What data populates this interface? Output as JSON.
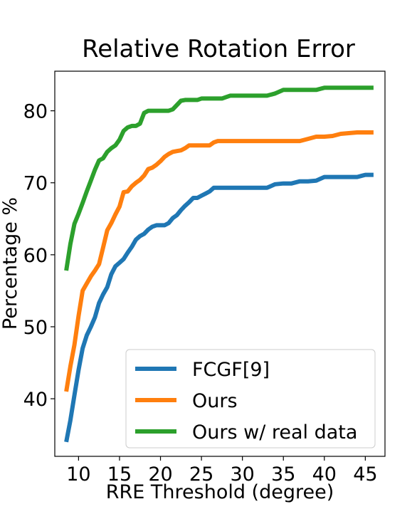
{
  "chart_data": {
    "type": "line",
    "title": "Relative Rotation Error",
    "xlabel": "RRE Threshold (degree)",
    "ylabel": "Percentage %",
    "xlim": [
      7.1,
      47.4
    ],
    "ylim": [
      32,
      85.5
    ],
    "xticks": [
      10,
      15,
      20,
      25,
      30,
      35,
      40,
      45
    ],
    "yticks": [
      40,
      50,
      60,
      70,
      80
    ],
    "grid": false,
    "legend_position": "lower-right",
    "series": [
      {
        "name": "FCGF[9]",
        "color": "#1f77b4",
        "x": [
          8.5,
          9,
          9.5,
          10,
          10.5,
          11,
          11.5,
          12,
          12.5,
          13,
          13.5,
          14,
          14.5,
          15,
          15.5,
          16,
          16.5,
          17,
          17.5,
          18,
          18.5,
          19,
          19.5,
          20,
          20.5,
          21,
          21.5,
          22,
          22.5,
          23,
          23.5,
          24,
          24.5,
          25,
          25.5,
          26,
          26.5,
          27,
          27.5,
          28,
          28.5,
          29,
          30,
          31,
          32,
          33,
          34,
          35,
          36,
          37,
          38,
          39,
          40,
          41,
          42,
          43,
          44,
          45,
          46
        ],
        "y": [
          34,
          37,
          40.5,
          44,
          47,
          48.8,
          50,
          51.3,
          53.3,
          54.5,
          55.5,
          57.3,
          58.4,
          58.9,
          59.4,
          60.3,
          61.1,
          62.1,
          62.6,
          62.9,
          63.5,
          63.9,
          64.1,
          64.1,
          64.1,
          64.4,
          65.1,
          65.5,
          66.2,
          66.8,
          67.3,
          67.9,
          67.9,
          68.2,
          68.5,
          68.8,
          69.3,
          69.3,
          69.3,
          69.3,
          69.3,
          69.3,
          69.3,
          69.3,
          69.3,
          69.3,
          69.8,
          69.9,
          69.9,
          70.2,
          70.2,
          70.3,
          70.8,
          70.8,
          70.8,
          70.8,
          70.8,
          71.1,
          71.1
        ]
      },
      {
        "name": "Ours",
        "color": "#ff7f0e",
        "x": [
          8.5,
          9,
          9.5,
          10,
          10.5,
          11,
          11.5,
          12,
          12.5,
          13,
          13.5,
          14,
          14.5,
          15,
          15.5,
          16,
          16.5,
          17,
          17.5,
          18,
          18.5,
          19,
          19.5,
          20,
          20.5,
          21,
          21.5,
          22,
          22.5,
          23,
          23.5,
          24,
          24.5,
          25,
          25.5,
          26,
          26.5,
          27,
          28,
          29,
          30,
          31,
          32,
          33,
          34,
          35,
          36,
          37,
          38,
          39,
          40,
          41,
          42,
          43,
          44,
          45,
          46
        ],
        "y": [
          41,
          44.5,
          47.5,
          51.5,
          55,
          56,
          57,
          57.8,
          58.7,
          61,
          63.4,
          64.4,
          65.6,
          66.7,
          68.7,
          68.8,
          69.5,
          70,
          70.4,
          71,
          71.9,
          72.1,
          72.5,
          73,
          73.6,
          74,
          74.3,
          74.4,
          74.5,
          74.8,
          75.2,
          75.2,
          75.2,
          75.2,
          75.2,
          75.2,
          75.6,
          75.8,
          75.8,
          75.8,
          75.8,
          75.8,
          75.8,
          75.8,
          75.8,
          75.8,
          75.8,
          75.8,
          76.1,
          76.4,
          76.4,
          76.5,
          76.8,
          76.9,
          77,
          77,
          77
        ]
      },
      {
        "name": "Ours w/ real data",
        "color": "#2ca02c",
        "x": [
          8.5,
          9,
          9.5,
          10,
          10.5,
          11,
          11.5,
          12,
          12.5,
          13,
          13.5,
          14,
          14.5,
          15,
          15.5,
          16,
          16.5,
          17,
          17.5,
          18,
          18.5,
          19,
          19.5,
          20,
          20.5,
          21,
          21.5,
          22,
          22.5,
          23,
          23.5,
          24,
          24.5,
          25,
          25.5,
          26,
          26.5,
          27,
          27.5,
          28,
          28.5,
          29,
          30,
          31,
          32,
          33,
          34,
          35,
          36,
          37,
          38,
          39,
          40,
          41,
          42,
          43,
          44,
          45,
          46
        ],
        "y": [
          57.8,
          61.5,
          64.3,
          65.7,
          67.2,
          68.8,
          70.3,
          71.8,
          73.1,
          73.4,
          74.3,
          74.8,
          75.2,
          76,
          77.2,
          77.7,
          77.9,
          77.9,
          78.2,
          79.7,
          80,
          80,
          80,
          80,
          80,
          80,
          80.2,
          80.8,
          81.4,
          81.5,
          81.5,
          81.5,
          81.5,
          81.7,
          81.7,
          81.7,
          81.7,
          81.7,
          81.7,
          81.9,
          82.1,
          82.1,
          82.1,
          82.1,
          82.1,
          82.1,
          82.4,
          82.9,
          82.9,
          82.9,
          82.9,
          82.9,
          83.2,
          83.2,
          83.2,
          83.2,
          83.2,
          83.2,
          83.2
        ]
      }
    ]
  }
}
